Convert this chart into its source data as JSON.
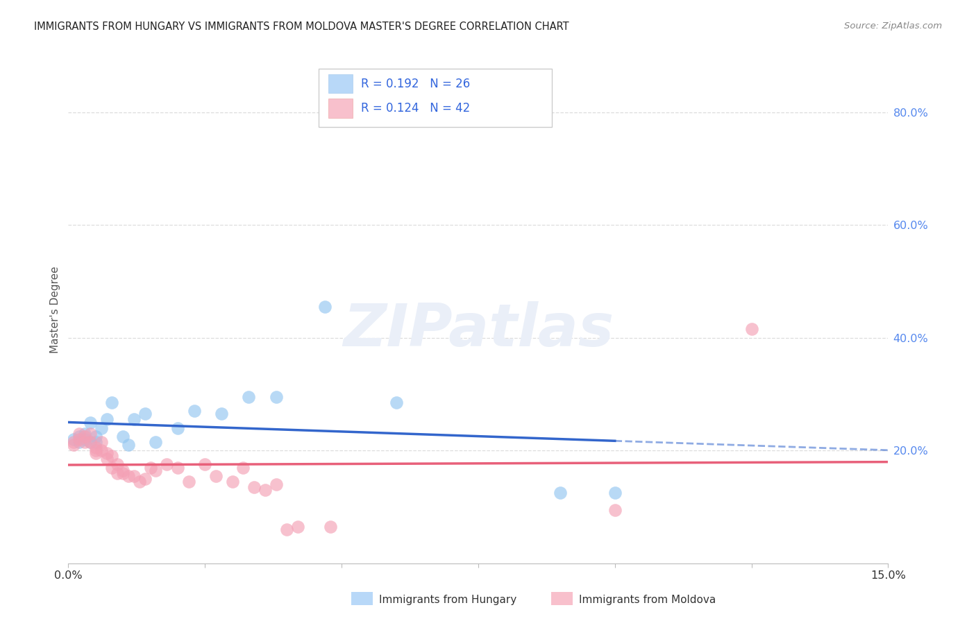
{
  "title": "IMMIGRANTS FROM HUNGARY VS IMMIGRANTS FROM MOLDOVA MASTER'S DEGREE CORRELATION CHART",
  "source": "Source: ZipAtlas.com",
  "ylabel": "Master's Degree",
  "r_hungary": 0.192,
  "n_hungary": 26,
  "r_moldova": 0.124,
  "n_moldova": 42,
  "color_hungary": "#92C5F0",
  "color_moldova": "#F4A0B5",
  "color_trendline_hungary": "#3366CC",
  "color_trendline_moldova": "#E8607A",
  "legend_rect_hungary": "#B8D8F8",
  "legend_rect_moldova": "#F8C0CC",
  "xmin": 0.0,
  "xmax": 0.15,
  "ymin": 0.0,
  "ymax": 0.9,
  "right_yticks": [
    0.2,
    0.4,
    0.6,
    0.8
  ],
  "right_yticklabels": [
    "20.0%",
    "40.0%",
    "60.0%",
    "80.0%"
  ],
  "hungary_x": [
    0.001,
    0.002,
    0.002,
    0.003,
    0.003,
    0.004,
    0.004,
    0.005,
    0.005,
    0.006,
    0.007,
    0.008,
    0.01,
    0.011,
    0.012,
    0.014,
    0.016,
    0.02,
    0.023,
    0.028,
    0.033,
    0.038,
    0.047,
    0.06,
    0.09,
    0.1
  ],
  "hungary_y": [
    0.22,
    0.225,
    0.215,
    0.23,
    0.22,
    0.215,
    0.25,
    0.215,
    0.225,
    0.24,
    0.255,
    0.285,
    0.225,
    0.21,
    0.255,
    0.265,
    0.215,
    0.24,
    0.27,
    0.265,
    0.295,
    0.295,
    0.455,
    0.285,
    0.125,
    0.125
  ],
  "moldova_x": [
    0.001,
    0.001,
    0.002,
    0.002,
    0.003,
    0.003,
    0.004,
    0.004,
    0.005,
    0.005,
    0.005,
    0.006,
    0.006,
    0.007,
    0.007,
    0.008,
    0.008,
    0.009,
    0.009,
    0.01,
    0.01,
    0.011,
    0.012,
    0.013,
    0.014,
    0.015,
    0.016,
    0.018,
    0.02,
    0.022,
    0.025,
    0.027,
    0.03,
    0.032,
    0.034,
    0.036,
    0.038,
    0.04,
    0.042,
    0.048,
    0.1,
    0.125
  ],
  "moldova_y": [
    0.215,
    0.21,
    0.23,
    0.22,
    0.225,
    0.215,
    0.23,
    0.215,
    0.205,
    0.2,
    0.195,
    0.2,
    0.215,
    0.195,
    0.185,
    0.19,
    0.17,
    0.175,
    0.16,
    0.16,
    0.165,
    0.155,
    0.155,
    0.145,
    0.15,
    0.17,
    0.165,
    0.175,
    0.17,
    0.145,
    0.175,
    0.155,
    0.145,
    0.17,
    0.135,
    0.13,
    0.14,
    0.06,
    0.065,
    0.065,
    0.095,
    0.415
  ],
  "background_color": "#FFFFFF",
  "watermark_color": "#EAEFF8",
  "grid_color": "#DDDDDD",
  "title_color": "#222222",
  "source_color": "#888888"
}
